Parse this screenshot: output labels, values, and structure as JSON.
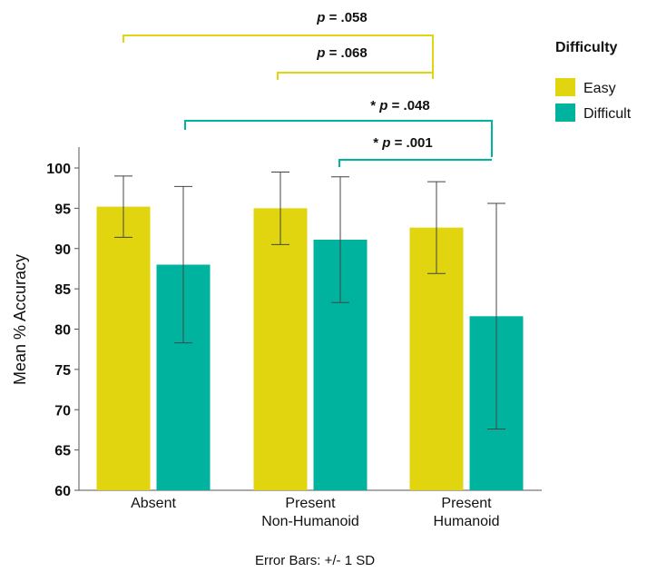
{
  "chart_data": {
    "type": "bar",
    "categories": [
      "Absent",
      "Present Non-Humanoid",
      "Present Humanoid"
    ],
    "category_lines": [
      [
        "Absent"
      ],
      [
        "Present",
        "Non-Humanoid"
      ],
      [
        "Present",
        "Humanoid"
      ]
    ],
    "series": [
      {
        "name": "Easy",
        "color": "#e0d50e",
        "values": [
          95.2,
          95.0,
          92.6
        ],
        "sd": [
          3.8,
          4.5,
          5.7
        ]
      },
      {
        "name": "Difficult",
        "color": "#00b39f",
        "values": [
          88.0,
          91.1,
          81.6
        ],
        "sd": [
          9.7,
          7.8,
          14.0
        ]
      }
    ],
    "ylabel": "Mean % Accuracy",
    "ylim": [
      60,
      100
    ],
    "yticks": [
      60,
      65,
      70,
      75,
      80,
      85,
      90,
      95,
      100
    ],
    "legend": {
      "title": "Difficulty",
      "position": "top-right"
    },
    "footer": "Error Bars: +/- 1 SD",
    "annotations": [
      {
        "label": "p = .058",
        "prefix": "",
        "p_text": "p",
        "rest": " = .058",
        "from": "Absent Easy",
        "to": "Present Humanoid Easy",
        "color": "#e0d50e"
      },
      {
        "label": "p = .068",
        "prefix": "",
        "p_text": "p",
        "rest": " = .068",
        "from": "Present Non-Humanoid Easy",
        "to": "Present Humanoid Easy",
        "color": "#e0d50e"
      },
      {
        "label": "* p = .048",
        "prefix": "* ",
        "p_text": "p",
        "rest": " = .048",
        "from": "Absent Difficult",
        "to": "Present Humanoid Difficult",
        "color": "#00b39f"
      },
      {
        "label": "* p = .001",
        "prefix": "* ",
        "p_text": "p",
        "rest": " = .001",
        "from": "Present Non-Humanoid Difficult",
        "to": "Present Humanoid Difficult",
        "color": "#00b39f"
      }
    ]
  }
}
